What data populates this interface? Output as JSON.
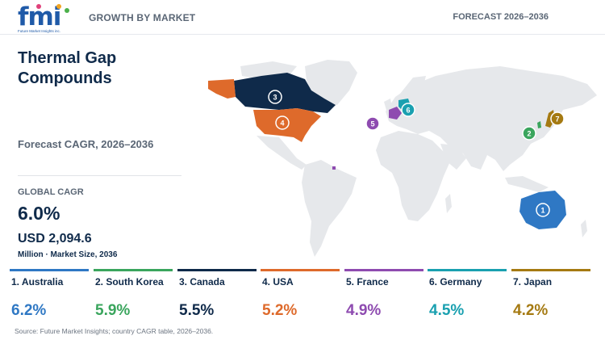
{
  "header": {
    "logo_text": "fmi",
    "logo_sub": "Future Market Insights inc.",
    "section": "GROWTH BY MARKET",
    "forecast": "FORECAST 2026–2036"
  },
  "title": "Thermal Gap Compounds",
  "subtitle": "Forecast CAGR, 2026–2036",
  "kpi": {
    "label": "GLOBAL CAGR",
    "cagr": "6.0%",
    "market_size": "USD 2,094.6",
    "unit": "Million · Market Size, 2036"
  },
  "countries": [
    {
      "rank": "1",
      "label": "1. Australia",
      "cagr": "6.2%",
      "color": "#2f78c4"
    },
    {
      "rank": "2",
      "label": "2. South Korea",
      "cagr": "5.9%",
      "color": "#3aa55d"
    },
    {
      "rank": "3",
      "label": "3. Canada",
      "cagr": "5.5%",
      "color": "#0f2a4a"
    },
    {
      "rank": "4",
      "label": "4. USA",
      "cagr": "5.2%",
      "color": "#de6a2b"
    },
    {
      "rank": "5",
      "label": "5. France",
      "cagr": "4.9%",
      "color": "#8e4bb0"
    },
    {
      "rank": "6",
      "label": "6. Germany",
      "cagr": "4.5%",
      "color": "#1aa0b0"
    },
    {
      "rank": "7",
      "label": "7. Japan",
      "cagr": "4.2%",
      "color": "#a57a12"
    }
  ],
  "map_base_color": "#e6e8eb",
  "source": "Source: Future Market Insights; country CAGR table, 2026–2036."
}
